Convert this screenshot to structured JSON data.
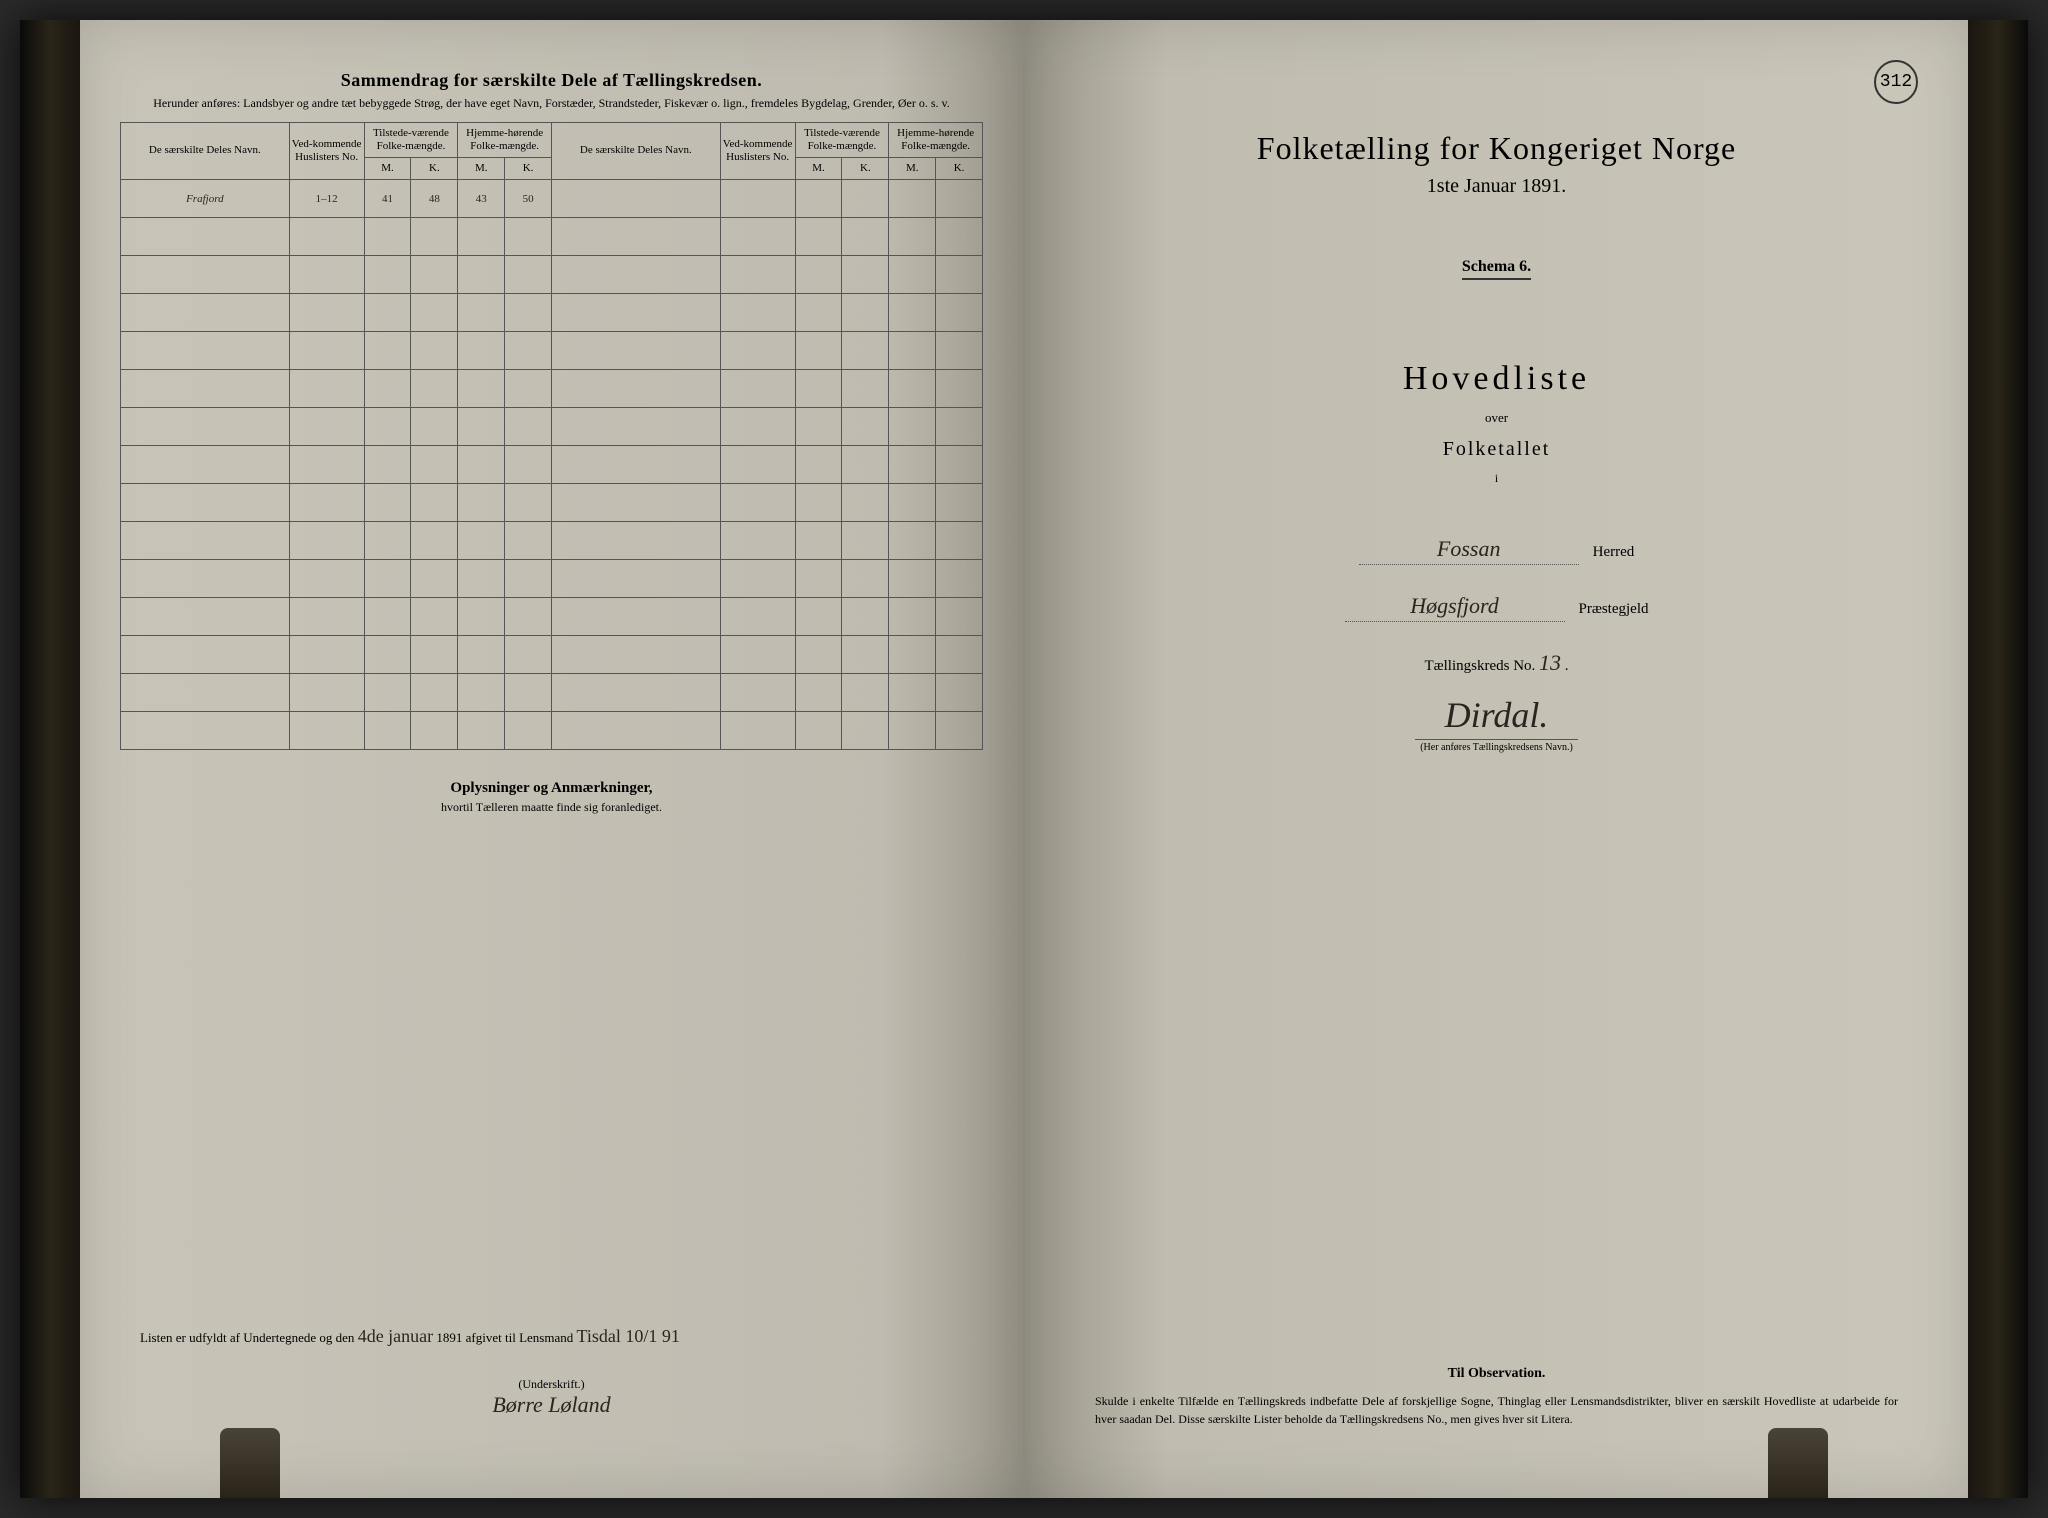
{
  "page_number": "312",
  "left_page": {
    "title": "Sammendrag for særskilte Dele af Tællingskredsen.",
    "subtitle": "Herunder anføres: Landsbyer og andre tæt bebyggede Strøg, der have eget Navn, Forstæder, Strandsteder, Fiskevær o. lign., fremdeles Bygdelag, Grender, Øer o. s. v.",
    "columns": {
      "name": "De særskilte Deles Navn.",
      "huslister": "Ved-kommende Huslisters No.",
      "tilstede": "Tilstede-værende Folke-mængde.",
      "hjemme": "Hjemme-hørende Folke-mængde.",
      "m": "M.",
      "k": "K."
    },
    "row1": {
      "name": "Frafjord",
      "no": "1–12",
      "til_m": "41",
      "til_k": "48",
      "hj_m": "43",
      "hj_k": "50"
    },
    "notes_title": "Oplysninger og Anmærkninger,",
    "notes_sub": "hvortil Tælleren maatte finde sig foranlediget.",
    "footer_text": "Listen er udfyldt af Undertegnede og den",
    "footer_date": "4de januar",
    "footer_year": "1891 afgivet til Lensmand",
    "footer_hand": "Tisdal 10/1 91",
    "signature_label": "(Underskrift.)",
    "signature": "Børre Løland"
  },
  "right_page": {
    "title": "Folketælling for Kongeriget Norge",
    "date": "1ste Januar 1891.",
    "schema": "Schema 6.",
    "hovedliste": "Hovedliste",
    "over": "over",
    "folketallet": "Folketallet",
    "i": "i",
    "herred_value": "Fossan",
    "herred_label": "Herred",
    "praestegjeld_value": "Høgsfjord",
    "praestegjeld_label": "Præstegjeld",
    "kreds_label": "Tællingskreds No.",
    "kreds_no": "13",
    "kreds_name": "Dirdal.",
    "kreds_note": "(Her anføres Tællingskredsens Navn.)",
    "obs_title": "Til Observation.",
    "obs_text": "Skulde i enkelte Tilfælde en Tællingskreds indbefatte Dele af forskjellige Sogne, Thinglag eller Lensmandsdistrikter, bliver en særskilt Hovedliste at udarbeide for hver saadan Del. Disse særskilte Lister beholde da Tællingskredsens No., men gives hver sit Litera."
  },
  "colors": {
    "page_bg": "#c8c4b8",
    "dark_bg": "#2a2a2a",
    "ink": "#2a2520",
    "border": "#555555"
  }
}
